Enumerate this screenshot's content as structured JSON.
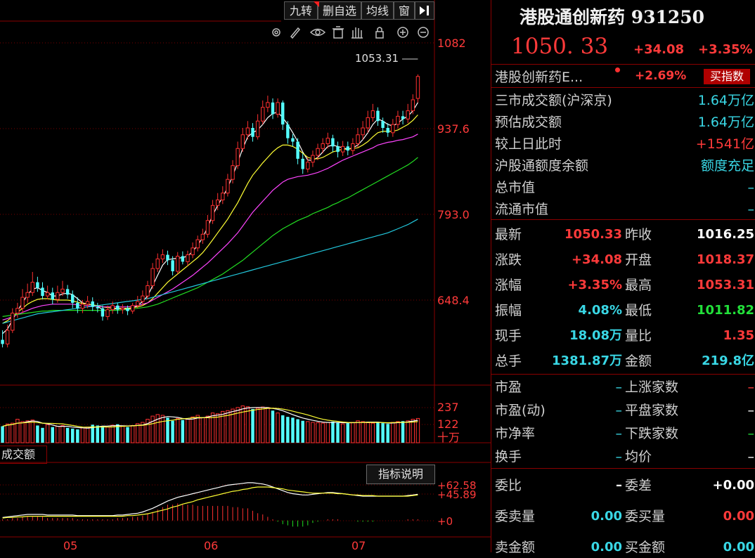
{
  "toolbar": {
    "buttons": [
      "九转",
      "删自选",
      "均线",
      "窗"
    ]
  },
  "chart_axes": {
    "price_ticks": [
      "1082",
      "937.6",
      "793.0",
      "648.4"
    ],
    "high_marker": "1053.31",
    "volume_ticks": [
      "237",
      "122",
      "十万"
    ],
    "indicator_ticks": [
      "+62.58",
      "+45.89",
      "+0"
    ],
    "date_ticks": [
      "05",
      "06",
      "07"
    ]
  },
  "indicator": {
    "label": "成交额",
    "help_button": "指标说明"
  },
  "quote": {
    "title": "港股通创新药 931250",
    "last": "1050. 33",
    "change": "+34.08",
    "change_pct": "+3.35%",
    "related_name": "港股创新药E...",
    "related_pct": "+2.69%",
    "buy_button": "买指数"
  },
  "market_rows": [
    {
      "label": "三市成交额(沪深京)",
      "value": "1.64万亿"
    },
    {
      "label": "预估成交额",
      "value": "1.64万亿"
    },
    {
      "label": "较上日此时",
      "value": "+1541亿"
    },
    {
      "label": "沪股通额度余额",
      "value": "额度充足"
    },
    {
      "label": "总市值",
      "value": "–"
    },
    {
      "label": "流通市值",
      "value": "–"
    }
  ],
  "stats": [
    {
      "l1": "最新",
      "v1": "1050.33",
      "c1": "red",
      "l2": "昨收",
      "v2": "1016.25",
      "c2": "white"
    },
    {
      "l1": "涨跌",
      "v1": "+34.08",
      "c1": "red",
      "l2": "开盘",
      "v2": "1018.37",
      "c2": "red"
    },
    {
      "l1": "涨幅",
      "v1": "+3.35%",
      "c1": "red",
      "l2": "最高",
      "v2": "1053.31",
      "c2": "red"
    },
    {
      "l1": "振幅",
      "v1": "4.08%",
      "c1": "cyan",
      "l2": "最低",
      "v2": "1011.82",
      "c2": "green"
    },
    {
      "l1": "现手",
      "v1": "18.08万",
      "c1": "cyan",
      "l2": "量比",
      "v2": "1.35",
      "c2": "red"
    },
    {
      "l1": "总手",
      "v1": "1381.87万",
      "c1": "cyan",
      "l2": "金额",
      "v2": "219.8亿",
      "c2": "cyan"
    }
  ],
  "breadth": [
    {
      "l1": "市盈",
      "v1": "–",
      "l2": "上涨家数",
      "v2": "–",
      "c2": "red"
    },
    {
      "l1": "市盈(动)",
      "v1": "–",
      "l2": "平盘家数",
      "v2": "–",
      "c2": "white"
    },
    {
      "l1": "市净率",
      "v1": "–",
      "l2": "下跌家数",
      "v2": "–",
      "c2": "green"
    },
    {
      "l1": "换手",
      "v1": "–",
      "l2": "均价",
      "v2": "–",
      "c2": "white"
    }
  ],
  "orders": [
    {
      "l1": "委比",
      "v1": "–",
      "c1": "white",
      "l2": "委差",
      "v2": "+0.00",
      "c2": "white"
    },
    {
      "l1": "委卖量",
      "v1": "0.00",
      "c1": "cyan",
      "l2": "委买量",
      "v2": "0.00",
      "c2": "red"
    },
    {
      "l1": "卖金额",
      "v1": "0.00",
      "c1": "cyan",
      "l2": "买金额",
      "v2": "0.00",
      "c2": "cyan"
    }
  ],
  "chart_data": {
    "type": "candlestick",
    "ylim": [
      600,
      1100
    ],
    "candles": [
      [
        666,
        660,
        680,
        655
      ],
      [
        660,
        680,
        688,
        655
      ],
      [
        680,
        705,
        712,
        676
      ],
      [
        705,
        712,
        720,
        698
      ],
      [
        712,
        728,
        740,
        705
      ],
      [
        728,
        735,
        748,
        720
      ],
      [
        735,
        750,
        765,
        730
      ],
      [
        750,
        742,
        758,
        736
      ],
      [
        742,
        730,
        750,
        725
      ],
      [
        730,
        735,
        745,
        725
      ],
      [
        735,
        725,
        742,
        718
      ],
      [
        725,
        735,
        745,
        720
      ],
      [
        735,
        740,
        752,
        730
      ],
      [
        740,
        732,
        746,
        726
      ],
      [
        732,
        720,
        738,
        712
      ],
      [
        720,
        712,
        728,
        705
      ],
      [
        712,
        718,
        724,
        705
      ],
      [
        718,
        722,
        730,
        712
      ],
      [
        722,
        714,
        728,
        708
      ],
      [
        714,
        712,
        720,
        706
      ],
      [
        712,
        700,
        716,
        694
      ],
      [
        700,
        710,
        716,
        695
      ],
      [
        710,
        716,
        722,
        704
      ],
      [
        716,
        710,
        720,
        704
      ],
      [
        710,
        712,
        718,
        704
      ],
      [
        712,
        708,
        716,
        702
      ],
      [
        708,
        716,
        720,
        704
      ],
      [
        716,
        722,
        730,
        712
      ],
      [
        722,
        730,
        738,
        716
      ],
      [
        730,
        745,
        752,
        725
      ],
      [
        745,
        770,
        778,
        740
      ],
      [
        770,
        784,
        792,
        765
      ],
      [
        784,
        790,
        798,
        778
      ],
      [
        790,
        782,
        796,
        775
      ],
      [
        782,
        766,
        788,
        760
      ],
      [
        766,
        788,
        794,
        762
      ],
      [
        788,
        780,
        795,
        776
      ],
      [
        780,
        790,
        796,
        774
      ],
      [
        790,
        800,
        808,
        785
      ],
      [
        800,
        812,
        818,
        795
      ],
      [
        812,
        820,
        828,
        806
      ],
      [
        820,
        840,
        848,
        815
      ],
      [
        840,
        862,
        870,
        835
      ],
      [
        862,
        870,
        880,
        855
      ],
      [
        870,
        880,
        890,
        864
      ],
      [
        880,
        900,
        908,
        875
      ],
      [
        900,
        920,
        928,
        894
      ],
      [
        920,
        945,
        955,
        915
      ],
      [
        945,
        965,
        975,
        940
      ],
      [
        965,
        975,
        985,
        958
      ],
      [
        975,
        962,
        982,
        955
      ],
      [
        962,
        985,
        995,
        958
      ],
      [
        985,
        1005,
        1015,
        980
      ],
      [
        1005,
        1012,
        1022,
        998
      ],
      [
        1012,
        995,
        1018,
        988
      ],
      [
        995,
        1012,
        1018,
        990
      ],
      [
        1012,
        980,
        1015,
        972
      ],
      [
        980,
        960,
        985,
        952
      ],
      [
        960,
        955,
        966,
        948
      ],
      [
        955,
        930,
        960,
        922
      ],
      [
        930,
        915,
        938,
        908
      ],
      [
        915,
        925,
        932,
        910
      ],
      [
        925,
        935,
        942,
        918
      ],
      [
        935,
        945,
        952,
        928
      ],
      [
        945,
        952,
        960,
        938
      ],
      [
        952,
        960,
        968,
        945
      ],
      [
        960,
        948,
        965,
        940
      ],
      [
        948,
        940,
        955,
        932
      ],
      [
        940,
        948,
        956,
        934
      ],
      [
        948,
        942,
        955,
        935
      ],
      [
        942,
        952,
        960,
        936
      ],
      [
        952,
        965,
        975,
        946
      ],
      [
        965,
        975,
        985,
        958
      ],
      [
        975,
        990,
        1000,
        968
      ],
      [
        990,
        1000,
        1010,
        984
      ],
      [
        1000,
        985,
        1005,
        978
      ],
      [
        985,
        975,
        990,
        968
      ],
      [
        975,
        968,
        982,
        962
      ],
      [
        968,
        980,
        988,
        962
      ],
      [
        980,
        992,
        1000,
        974
      ],
      [
        992,
        988,
        1000,
        980
      ],
      [
        988,
        1000,
        1010,
        982
      ],
      [
        1000,
        1016,
        1024,
        995
      ],
      [
        1018,
        1050,
        1053,
        1012
      ]
    ],
    "ma_series": [
      {
        "color": "#ffffff",
        "values": [
          675,
          682,
          695,
          708,
          720,
          732,
          740,
          742,
          738,
          735,
          730,
          730,
          733,
          734,
          732,
          726,
          720,
          718,
          717,
          715,
          710,
          708,
          710,
          712,
          711,
          711,
          712,
          716,
          722,
          730,
          745,
          760,
          775,
          783,
          784,
          785,
          786,
          788,
          795,
          804,
          815,
          830,
          848,
          862,
          874,
          888,
          905,
          925,
          945,
          962,
          968,
          972,
          980,
          990,
          996,
          998,
          990,
          980,
          968,
          955,
          940,
          928,
          928,
          932,
          940,
          948,
          950,
          948,
          946,
          944,
          946,
          950,
          958,
          968,
          980,
          988,
          985,
          980,
          978,
          982,
          988,
          992,
          1000,
          1012
        ]
      },
      {
        "color": "#ffff33",
        "values": [
          690,
          694,
          700,
          706,
          712,
          718,
          722,
          725,
          726,
          726,
          725,
          724,
          724,
          724,
          723,
          721,
          719,
          718,
          717,
          716,
          714,
          713,
          712,
          712,
          712,
          712,
          713,
          714,
          716,
          720,
          726,
          734,
          742,
          750,
          756,
          762,
          768,
          774,
          780,
          786,
          793,
          802,
          812,
          822,
          832,
          842,
          854,
          866,
          880,
          894,
          906,
          915,
          924,
          932,
          940,
          946,
          950,
          950,
          948,
          944,
          938,
          932,
          930,
          930,
          932,
          936,
          940,
          942,
          944,
          944,
          945,
          946,
          950,
          955,
          962,
          968,
          970,
          970,
          970,
          972,
          976,
          980,
          986,
          994
        ]
      },
      {
        "color": "#ff44ff",
        "values": [
          695,
          697,
          700,
          703,
          706,
          709,
          712,
          714,
          716,
          717,
          718,
          718,
          718,
          718,
          718,
          717,
          716,
          716,
          715,
          715,
          714,
          714,
          714,
          714,
          714,
          714,
          715,
          716,
          718,
          720,
          724,
          728,
          732,
          736,
          740,
          745,
          750,
          755,
          760,
          766,
          772,
          778,
          785,
          792,
          799,
          806,
          814,
          822,
          832,
          842,
          852,
          860,
          868,
          876,
          884,
          890,
          896,
          900,
          902,
          904,
          905,
          906,
          908,
          910,
          913,
          916,
          920,
          924,
          928,
          931,
          934,
          937,
          940,
          943,
          946,
          950,
          952,
          954,
          955,
          957,
          958,
          960,
          962,
          966
        ]
      },
      {
        "color": "#22dd22",
        "values": [
          700,
          701,
          702,
          703,
          704,
          705,
          706,
          707,
          708,
          708,
          709,
          709,
          709,
          709,
          709,
          709,
          709,
          709,
          709,
          709,
          709,
          709,
          709,
          709,
          710,
          710,
          711,
          712,
          713,
          714,
          716,
          718,
          721,
          724,
          727,
          730,
          733,
          736,
          739,
          742,
          746,
          750,
          754,
          758,
          762,
          767,
          772,
          777,
          782,
          788,
          794,
          800,
          806,
          812,
          818,
          823,
          828,
          832,
          836,
          840,
          843,
          846,
          850,
          853,
          856,
          859,
          863,
          866,
          870,
          873,
          877,
          881,
          885,
          889,
          893,
          897,
          901,
          905,
          909,
          913,
          917,
          921,
          926,
          932
        ]
      },
      {
        "color": "#22c8dd",
        "values": [
          690,
          692,
          694,
          696,
          698,
          700,
          702,
          704,
          705,
          706,
          707,
          708,
          709,
          710,
          711,
          712,
          713,
          714,
          715,
          716,
          717,
          718,
          719,
          720,
          721,
          722,
          723,
          724,
          725,
          726,
          728,
          730,
          732,
          734,
          736,
          738,
          740,
          742,
          744,
          746,
          748,
          750,
          752,
          754,
          756,
          758,
          760,
          762,
          764,
          766,
          768,
          770,
          772,
          774,
          776,
          778,
          780,
          782,
          784,
          786,
          788,
          790,
          792,
          794,
          796,
          798,
          800,
          802,
          804,
          806,
          808,
          810,
          812,
          814,
          816,
          818,
          820,
          822,
          825,
          828,
          831,
          834,
          838,
          842
        ]
      }
    ],
    "volume": [
      105,
      120,
      125,
      150,
      135,
      140,
      145,
      110,
      95,
      115,
      100,
      105,
      110,
      95,
      90,
      85,
      95,
      100,
      115,
      110,
      108,
      100,
      112,
      118,
      105,
      100,
      110,
      122,
      130,
      150,
      170,
      180,
      175,
      160,
      140,
      155,
      145,
      150,
      165,
      175,
      160,
      170,
      190,
      185,
      200,
      205,
      215,
      225,
      235,
      230,
      215,
      220,
      228,
      225,
      205,
      190,
      175,
      165,
      160,
      150,
      140,
      135,
      130,
      128,
      125,
      130,
      135,
      128,
      120,
      125,
      130,
      140,
      135,
      128,
      125,
      130,
      125,
      120,
      130,
      135,
      138,
      140,
      150,
      155
    ],
    "vol_ylim": [
      0,
      260
    ],
    "macd_dif": [
      5,
      6,
      7,
      8,
      9,
      10,
      10,
      10,
      10,
      9,
      9,
      9,
      9,
      9,
      9,
      8,
      8,
      8,
      8,
      8,
      8,
      8,
      8,
      9,
      9,
      10,
      11,
      12,
      14,
      17,
      20,
      24,
      28,
      32,
      35,
      38,
      40,
      42,
      44,
      46,
      48,
      50,
      52,
      54,
      56,
      58,
      59,
      60,
      61,
      62,
      62,
      61,
      60,
      58,
      55,
      52,
      49,
      46,
      44,
      43,
      42,
      42,
      43,
      44,
      45,
      46,
      46,
      45,
      44,
      43,
      42,
      41,
      40,
      40,
      40,
      40,
      40,
      40,
      40,
      40,
      40,
      41,
      42,
      43
    ],
    "macd_dea": [
      4,
      5,
      5,
      6,
      6,
      7,
      7,
      7,
      7,
      7,
      7,
      7,
      7,
      7,
      7,
      7,
      7,
      7,
      7,
      7,
      7,
      7,
      7,
      7,
      7,
      8,
      8,
      9,
      10,
      11,
      13,
      15,
      17,
      19,
      22,
      24,
      27,
      29,
      31,
      34,
      36,
      38,
      40,
      42,
      44,
      46,
      48,
      49,
      51,
      52,
      54,
      55,
      55,
      55,
      54,
      53,
      52,
      50,
      49,
      48,
      47,
      46,
      45,
      45,
      45,
      45,
      45,
      44,
      44,
      43,
      42,
      42,
      41,
      41,
      41,
      40,
      40,
      40,
      40,
      40,
      40,
      40,
      41,
      42
    ],
    "macd_ylim": [
      -20,
      70
    ]
  }
}
